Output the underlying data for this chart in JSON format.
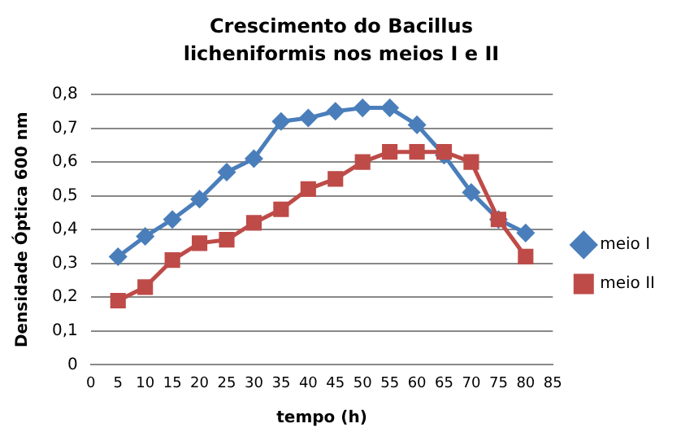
{
  "chart_data": {
    "type": "line",
    "title": "Crescimento do Bacillus licheniformis nos meios I e II",
    "xlabel": "tempo (h)",
    "ylabel": "Densidade Óptica 600 nm",
    "categories": [
      "0",
      "5",
      "10",
      "15",
      "20",
      "25",
      "30",
      "35",
      "40",
      "45",
      "50",
      "55",
      "60",
      "65",
      "70",
      "75",
      "80",
      "85"
    ],
    "series": [
      {
        "name": "meio I",
        "color": "#4a7ebb",
        "marker": "diamond",
        "values": [
          null,
          0.32,
          0.38,
          0.43,
          0.49,
          0.57,
          0.61,
          0.72,
          0.73,
          0.75,
          0.76,
          0.76,
          0.71,
          0.62,
          0.51,
          0.43,
          0.39,
          null
        ]
      },
      {
        "name": "meio II",
        "color": "#be4b48",
        "marker": "square",
        "values": [
          null,
          0.19,
          0.23,
          0.31,
          0.36,
          0.37,
          0.42,
          0.46,
          0.52,
          0.55,
          0.6,
          0.63,
          0.63,
          0.63,
          0.6,
          0.43,
          0.32,
          null
        ]
      }
    ],
    "ylim": [
      0,
      0.8
    ],
    "yticks": [
      {
        "value": 0,
        "label": "0"
      },
      {
        "value": 0.1,
        "label": "0,1"
      },
      {
        "value": 0.2,
        "label": "0,2"
      },
      {
        "value": 0.3,
        "label": "0,3"
      },
      {
        "value": 0.4,
        "label": "0,4"
      },
      {
        "value": 0.5,
        "label": "0,5"
      },
      {
        "value": 0.6,
        "label": "0,6"
      },
      {
        "value": 0.7,
        "label": "0,7"
      },
      {
        "value": 0.8,
        "label": "0,8"
      }
    ],
    "grid": "y",
    "legend": "right"
  }
}
